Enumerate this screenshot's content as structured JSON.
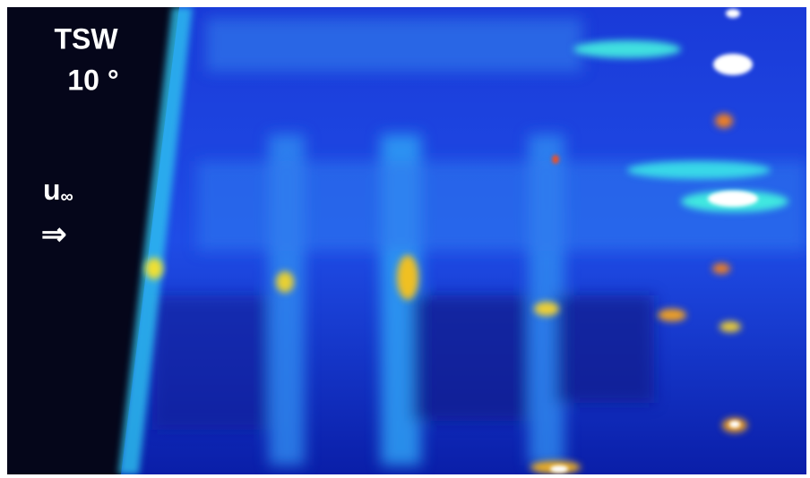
{
  "labels": {
    "title": "TSW",
    "angle": "10 °",
    "velocity": {
      "symbol": "u",
      "subscript": "∞"
    },
    "arrow": "⇒"
  }
}
